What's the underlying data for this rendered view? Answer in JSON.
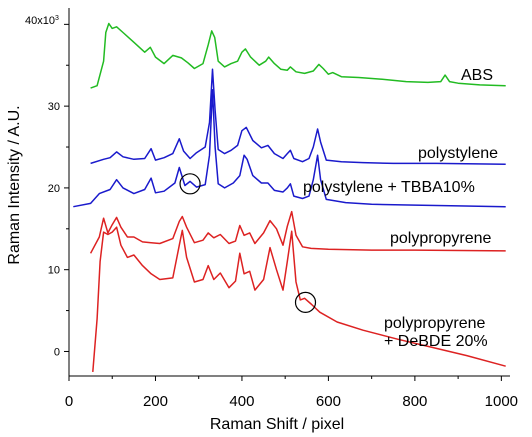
{
  "chart_data": {
    "type": "line",
    "xlabel": "Raman Shift / pixel",
    "ylabel": "Raman Intensity / A.U.",
    "xlim": [
      0,
      1020
    ],
    "ylim": [
      -3,
      42
    ],
    "x_ticks": [
      0,
      200,
      400,
      600,
      800,
      1000
    ],
    "y_ticks": [
      0,
      10,
      20,
      30
    ],
    "y_top_tick_label": "40x10",
    "y_top_tick_exponent": "3",
    "grid": false,
    "legend": "none",
    "series": [
      {
        "name": "ABS",
        "color": "#22bb22",
        "x": [
          50,
          65,
          80,
          85,
          92,
          100,
          110,
          125,
          150,
          175,
          188,
          200,
          220,
          240,
          260,
          275,
          290,
          310,
          322,
          330,
          337,
          345,
          360,
          375,
          390,
          400,
          408,
          420,
          440,
          455,
          462,
          475,
          490,
          505,
          512,
          525,
          545,
          565,
          578,
          588,
          600,
          610,
          630,
          670,
          720,
          780,
          830,
          860,
          870,
          880,
          900,
          950,
          1010
        ],
        "y": [
          32.2,
          32.5,
          35.5,
          39,
          40.1,
          39.5,
          39.7,
          39.0,
          37.8,
          36.6,
          37.2,
          36.0,
          35.2,
          36.2,
          35.9,
          35.3,
          34.6,
          35.2,
          37.5,
          39.2,
          38.4,
          35.5,
          34.8,
          35.2,
          35.5,
          36.6,
          37.0,
          36.0,
          35.0,
          35.5,
          36.0,
          35.2,
          34.5,
          34.4,
          34.8,
          34.2,
          34.0,
          34.3,
          35.1,
          34.6,
          33.9,
          34.1,
          33.6,
          33.5,
          33.3,
          33.0,
          32.9,
          33.0,
          33.8,
          33.0,
          32.8,
          32.6,
          32.5
        ]
      },
      {
        "name": "polystylene",
        "color": "#1a1acc",
        "x": [
          50,
          80,
          95,
          110,
          125,
          150,
          175,
          190,
          200,
          220,
          240,
          255,
          265,
          280,
          295,
          315,
          325,
          332,
          338,
          345,
          360,
          375,
          390,
          400,
          410,
          425,
          445,
          460,
          475,
          495,
          505,
          512,
          520,
          540,
          555,
          565,
          575,
          582,
          595,
          630,
          680,
          750,
          850,
          1010
        ],
        "y": [
          23.0,
          23.5,
          23.7,
          24.4,
          23.8,
          23.5,
          23.6,
          24.8,
          23.4,
          23.7,
          24.2,
          26.0,
          24.5,
          23.6,
          24.3,
          25.0,
          28.0,
          34.5,
          29.5,
          24.7,
          24.2,
          24.6,
          25.2,
          27.0,
          27.4,
          25.8,
          24.9,
          25.2,
          24.2,
          23.6,
          24.2,
          24.6,
          23.6,
          23.2,
          23.6,
          25.0,
          27.2,
          25.6,
          23.4,
          23.2,
          23.1,
          23.0,
          23.0,
          22.9
        ]
      },
      {
        "name": "polystylene + TBBA10%",
        "color": "#1a1acc",
        "x": [
          10,
          50,
          70,
          95,
          110,
          125,
          150,
          175,
          190,
          200,
          220,
          245,
          255,
          268,
          280,
          295,
          315,
          325,
          332,
          338,
          345,
          360,
          380,
          395,
          405,
          412,
          425,
          445,
          460,
          475,
          495,
          505,
          512,
          520,
          540,
          555,
          565,
          575,
          582,
          595,
          640,
          700,
          800,
          900,
          1010
        ],
        "y": [
          17.7,
          18.1,
          19.3,
          19.8,
          21.0,
          20.0,
          19.3,
          19.8,
          21.2,
          19.4,
          19.6,
          20.6,
          22.5,
          20.3,
          20.8,
          20.1,
          20.4,
          24.0,
          32.0,
          25.0,
          20.5,
          20.0,
          20.6,
          21.5,
          24.0,
          23.5,
          21.5,
          20.6,
          20.6,
          19.7,
          19.5,
          20.0,
          20.5,
          19.0,
          18.7,
          19.0,
          21.0,
          24.0,
          21.0,
          18.6,
          18.2,
          18.0,
          17.9,
          17.8,
          17.7
        ]
      },
      {
        "name": "polypropyrene",
        "color": "#dd2222",
        "x": [
          50,
          70,
          80,
          90,
          100,
          110,
          120,
          135,
          150,
          170,
          190,
          210,
          240,
          255,
          262,
          272,
          290,
          310,
          322,
          335,
          350,
          370,
          385,
          395,
          405,
          418,
          430,
          450,
          465,
          480,
          495,
          505,
          515,
          525,
          540,
          560,
          600,
          700,
          800,
          1010
        ],
        "y": [
          12.0,
          14.0,
          16.3,
          14.5,
          15.5,
          16.4,
          15.2,
          14.0,
          14.0,
          13.4,
          13.3,
          13.2,
          13.8,
          15.9,
          16.5,
          15.2,
          13.3,
          13.6,
          14.5,
          13.9,
          14.3,
          13.2,
          13.5,
          15.4,
          14.2,
          14.5,
          13.2,
          14.5,
          16.0,
          15.0,
          13.0,
          15.3,
          17.1,
          14.2,
          12.8,
          12.6,
          12.5,
          12.4,
          12.4,
          12.3
        ]
      },
      {
        "name": "polypropyrene + DeBDE 20%",
        "color": "#dd2222",
        "x": [
          55,
          65,
          72,
          80,
          90,
          100,
          110,
          120,
          135,
          150,
          170,
          190,
          210,
          240,
          255,
          262,
          272,
          290,
          310,
          322,
          335,
          350,
          370,
          385,
          395,
          405,
          418,
          430,
          450,
          465,
          480,
          495,
          505,
          515,
          525,
          535,
          545,
          560,
          580,
          620,
          680,
          760,
          840,
          920,
          1010
        ],
        "y": [
          -2.5,
          4.0,
          11.0,
          14.6,
          14.3,
          14.6,
          15.2,
          13.0,
          11.5,
          11.8,
          10.5,
          9.5,
          8.8,
          9.0,
          13.0,
          14.8,
          11.5,
          8.5,
          8.8,
          10.5,
          8.8,
          9.6,
          7.8,
          8.6,
          12.0,
          9.5,
          9.8,
          7.5,
          8.8,
          12.7,
          10.0,
          7.5,
          11.0,
          14.7,
          8.5,
          6.3,
          6.5,
          5.8,
          4.8,
          3.6,
          2.6,
          1.5,
          0.5,
          -0.5,
          -1.8
        ]
      }
    ]
  },
  "labels": {
    "abs": "ABS",
    "ps": "polystylene",
    "ps_tbba": "polystylene + TBBA10%",
    "pp": "polypropyrene",
    "pp_debde_1": "polypropyrene",
    "pp_debde_2": "+ DeBDE 20%"
  },
  "markers": [
    {
      "name": "tbba-marker",
      "x": 280,
      "y": 20.5
    },
    {
      "name": "debde-marker",
      "x": 547,
      "y": 6.0
    }
  ]
}
